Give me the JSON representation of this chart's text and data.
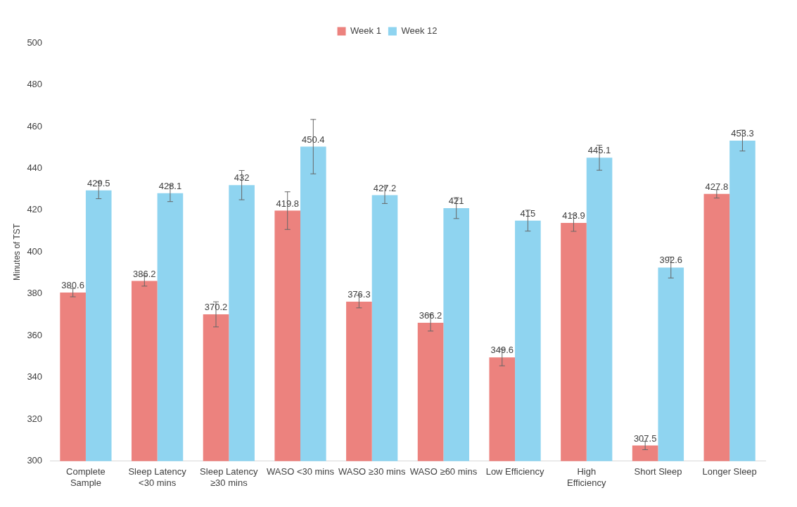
{
  "chart_data": {
    "type": "bar",
    "ylabel": "Minutes of TST",
    "categories": [
      "Complete Sample",
      "Sleep Latency <30 mins",
      "Sleep Latency ≥30 mins",
      "WASO <30 mins",
      "WASO ≥30 mins",
      "WASO ≥60 mins",
      "Low Efficiency",
      "High Efficiency",
      "Short Sleep",
      "Longer Sleep"
    ],
    "series": [
      {
        "name": "Week 1",
        "color": "#ec827e",
        "values": [
          380.6,
          386.2,
          370.2,
          419.8,
          376.3,
          366.2,
          349.6,
          413.9,
          307.5,
          427.8
        ],
        "errors": [
          2,
          2.5,
          6,
          9,
          3,
          4,
          4,
          4,
          2,
          2
        ]
      },
      {
        "name": "Week 12",
        "color": "#8fd4f0",
        "values": [
          429.5,
          428.1,
          432,
          450.4,
          427.2,
          421,
          415,
          445.1,
          392.6,
          453.3
        ],
        "errors": [
          4,
          4,
          7,
          13,
          4,
          5,
          5,
          6,
          5,
          5
        ]
      }
    ],
    "ylim": [
      300,
      500
    ],
    "yticks": [
      300,
      320,
      340,
      360,
      380,
      400,
      420,
      440,
      460,
      480,
      500
    ],
    "grid": false,
    "legend": "top",
    "data_labels": true
  }
}
